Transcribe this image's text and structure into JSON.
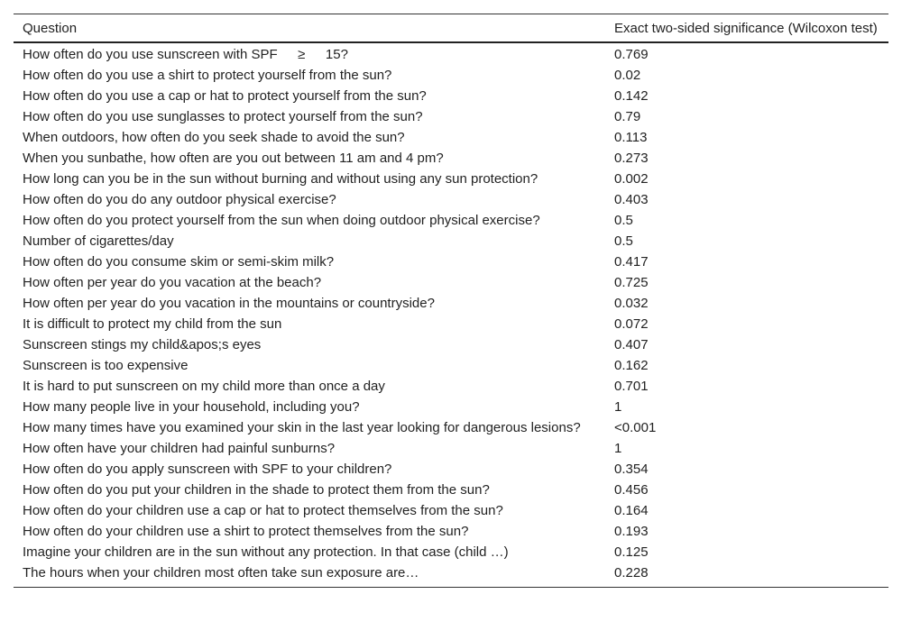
{
  "table": {
    "header": [
      "Question",
      "Exact two-sided significance (Wilcoxon test)"
    ],
    "rows": [
      [
        "How often do you use sunscreen with SPF  ≥  15?",
        "0.769"
      ],
      [
        "How often do you use a shirt to protect yourself from the sun?",
        "0.02"
      ],
      [
        "How often do you use a cap or hat to protect yourself from the sun?",
        "0.142"
      ],
      [
        "How often do you use sunglasses to protect yourself from the sun?",
        "0.79"
      ],
      [
        "When outdoors, how often do you seek shade to avoid the sun?",
        "0.113"
      ],
      [
        "When you sunbathe, how often are you out between 11 am and 4 pm?",
        "0.273"
      ],
      [
        "How long can you be in the sun without burning and without using any sun protection?",
        "0.002"
      ],
      [
        "How often do you do any outdoor physical exercise?",
        "0.403"
      ],
      [
        "How often do you protect yourself from the sun when doing outdoor physical exercise?",
        "0.5"
      ],
      [
        "Number of cigarettes/day",
        "0.5"
      ],
      [
        "How often do you consume skim or semi-skim milk?",
        "0.417"
      ],
      [
        "How often per year do you vacation at the beach?",
        "0.725"
      ],
      [
        "How often per year do you vacation in the mountains or countryside?",
        "0.032"
      ],
      [
        "It is difficult to protect my child from the sun",
        "0.072"
      ],
      [
        "Sunscreen stings my child&apos;s eyes",
        "0.407"
      ],
      [
        "Sunscreen is too expensive",
        "0.162"
      ],
      [
        "It is hard to put sunscreen on my child more than once a day",
        "0.701"
      ],
      [
        "How many people live in your household, including you?",
        "1"
      ],
      [
        "How many times have you examined your skin in the last year looking for dangerous lesions?",
        "<0.001"
      ],
      [
        "How often have your children had painful sunburns?",
        "1"
      ],
      [
        "How often do you apply sunscreen with SPF to your children?",
        "0.354"
      ],
      [
        "How often do you put your children in the shade to protect them from the sun?",
        "0.456"
      ],
      [
        "How often do your children use a cap or hat to protect themselves from the sun?",
        "0.164"
      ],
      [
        "How often do your children use a shirt to protect themselves from the sun?",
        "0.193"
      ],
      [
        "Imagine your children are in the sun without any protection. In that case (child …)",
        "0.125"
      ],
      [
        "The hours when your children most often take sun exposure are…",
        "0.228"
      ]
    ]
  }
}
